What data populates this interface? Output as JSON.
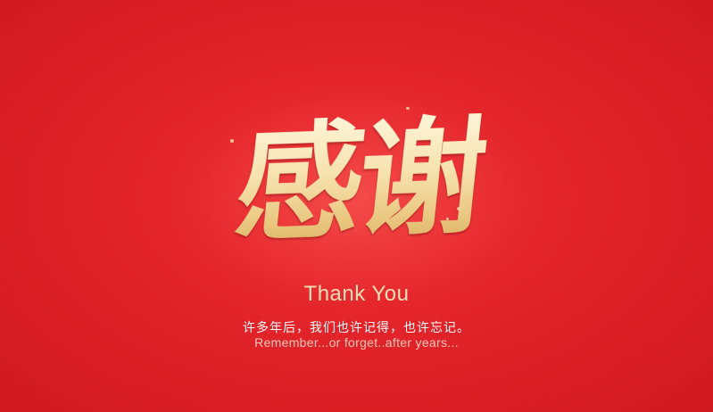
{
  "slide": {
    "title_calligraphy": "感谢",
    "thank_you": "Thank You",
    "chinese_line": "许多年后，我们也许记得，也许忘记。",
    "english_line": "Remember...or forget..after years..."
  },
  "colors": {
    "background": "#e4262b",
    "gold_text": "#f6e2ae",
    "white_text": "#ffffff",
    "pink_text": "#f6c7b8"
  }
}
